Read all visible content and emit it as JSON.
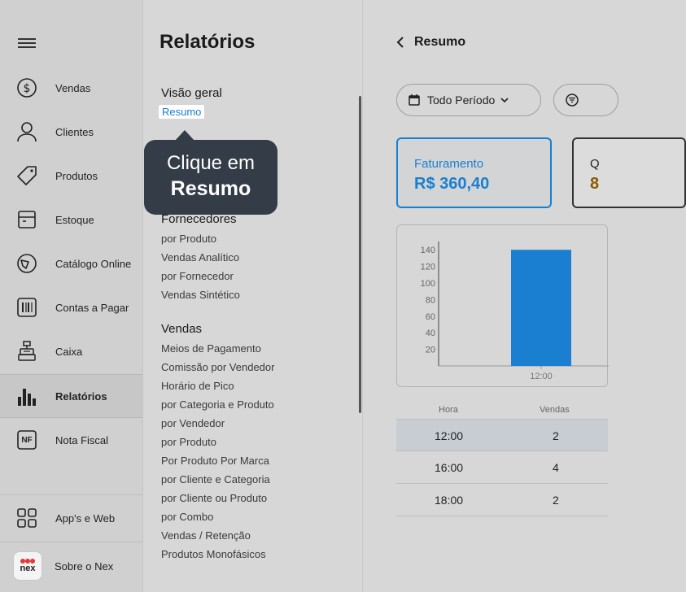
{
  "sidebar": {
    "menu_icon": "hamburger-icon",
    "items": [
      {
        "label": "Vendas",
        "icon": "dollar-circle-icon"
      },
      {
        "label": "Clientes",
        "icon": "user-icon"
      },
      {
        "label": "Produtos",
        "icon": "tag-icon"
      },
      {
        "label": "Estoque",
        "icon": "box-icon"
      },
      {
        "label": "Catálogo Online",
        "icon": "catalog-icon"
      },
      {
        "label": "Contas a Pagar",
        "icon": "barcode-icon"
      },
      {
        "label": "Caixa",
        "icon": "cash-register-icon"
      },
      {
        "label": "Relatórios",
        "icon": "bar-chart-icon",
        "active": true
      },
      {
        "label": "Nota Fiscal",
        "icon": "nf-icon",
        "icon_text": "NF"
      }
    ],
    "apps_label": "App's e Web",
    "about_label": "Sobre o Nex",
    "logo_text": "nex"
  },
  "reports": {
    "title": "Relatórios",
    "visao_geral": {
      "title": "Visão geral",
      "links": [
        "Resumo"
      ]
    },
    "fornecedores": {
      "title": "Fornecedores",
      "links": [
        "por Produto",
        "Vendas Analítico",
        "por Fornecedor",
        "Vendas Sintético"
      ]
    },
    "vendas": {
      "title": "Vendas",
      "links": [
        "Meios de Pagamento",
        "Comissão por Vendedor",
        "Horário de Pico",
        "por Categoria e Produto",
        "por Vendedor",
        "por Produto",
        "Por Produto Por Marca",
        "por Cliente e Categoria",
        "por Cliente ou Produto",
        "por Combo",
        "Vendas / Retenção",
        "Produtos Monofásicos"
      ]
    }
  },
  "tooltip": {
    "line1": "Clique em",
    "line2": "Resumo"
  },
  "main": {
    "back_label": "Resumo",
    "period_label": "Todo Período",
    "card1": {
      "title": "Faturamento",
      "value": "R$ 360,40"
    },
    "card2_partial": {
      "title": "Q",
      "value": "8"
    }
  },
  "chart_data": {
    "type": "bar",
    "categories": [
      "12:00"
    ],
    "values": [
      140
    ],
    "yticks": [
      20,
      40,
      60,
      80,
      100,
      120,
      140
    ],
    "ylim": [
      0,
      150
    ],
    "color": "#1a7fd0"
  },
  "table": {
    "headers": [
      "Hora",
      "Vendas"
    ],
    "rows": [
      {
        "hora": "12:00",
        "vendas": "2"
      },
      {
        "hora": "16:00",
        "vendas": "4"
      },
      {
        "hora": "18:00",
        "vendas": "2"
      }
    ]
  }
}
